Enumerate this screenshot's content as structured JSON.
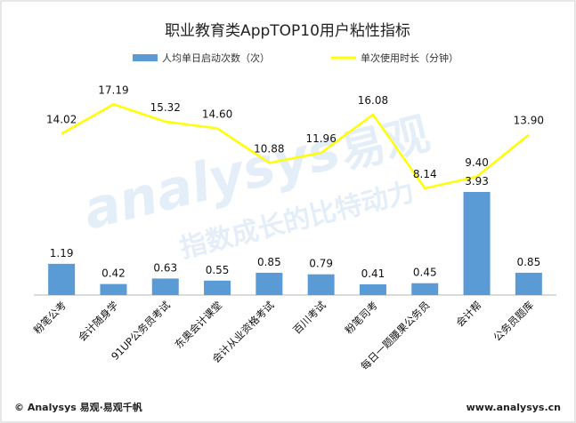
{
  "chart_data": {
    "type": "bar",
    "title": "职业教育类AppTOP10用户粘性指标",
    "categories": [
      "粉笔公考",
      "会计随身学",
      "91UP公务员考试",
      "东奥会计课堂",
      "会计从业资格考试",
      "百川考试",
      "粉笔司考",
      "每日一题腰果公务员",
      "会计帮",
      "公务员题库"
    ],
    "series": [
      {
        "name": "人均单日启动次数（次）",
        "type": "bar",
        "color": "#5b9bd5",
        "values": [
          1.19,
          0.42,
          0.63,
          0.55,
          0.85,
          0.79,
          0.41,
          0.45,
          3.93,
          0.85
        ]
      },
      {
        "name": "单次使用时长（分钟）",
        "type": "line",
        "color": "#ffff00",
        "values": [
          14.02,
          17.19,
          15.32,
          14.6,
          10.88,
          11.96,
          16.08,
          8.14,
          9.4,
          13.9
        ]
      }
    ],
    "data_labels": {
      "bars": [
        "1.19",
        "0.42",
        "0.63",
        "0.55",
        "0.85",
        "0.79",
        "0.41",
        "0.45",
        "3.93",
        "0.85"
      ],
      "line": [
        "14.02",
        "17.19",
        "15.32",
        "14.60",
        "10.88",
        "11.96",
        "16.08",
        "8.14",
        "9.40",
        "13.90"
      ]
    },
    "legend_position": "top",
    "grid": false
  },
  "watermark": {
    "brand_latin": "analysys",
    "brand_cn": "易观",
    "slogan": "指数成长的比特动力"
  },
  "footer": {
    "copyright": "© Analysys 易观·易观千帆",
    "website": "www.analysys.cn"
  }
}
